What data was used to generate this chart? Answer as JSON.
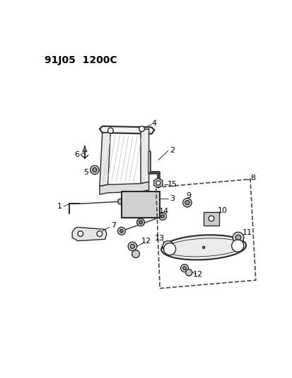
{
  "title": "91J05  1200C",
  "bg": "#ffffff",
  "lc": "#2a2a2a",
  "figsize": [
    4.14,
    5.33
  ],
  "dpi": 100
}
